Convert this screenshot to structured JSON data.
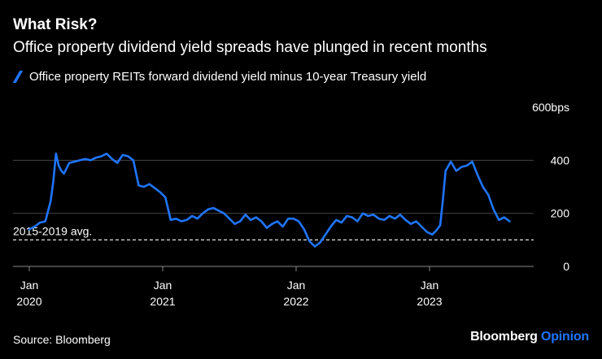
{
  "header": {
    "title": "What Risk?",
    "subtitle": "Office property dividend yield spreads have plunged in recent months"
  },
  "footer": {
    "source": "Source: Bloomberg",
    "brand_primary": "Bloomberg",
    "brand_secondary": "Opinion"
  },
  "colors": {
    "background": "#000000",
    "series": "#1f75fe",
    "text": "#ffffff",
    "grid": "#444444"
  },
  "chart_data": {
    "type": "line",
    "title": "What Risk?",
    "subtitle": "Office property dividend yield spreads have plunged in recent months",
    "xlabel": "",
    "ylabel": "",
    "ylim": [
      0,
      600
    ],
    "y_ticks": [
      {
        "value": 0,
        "label": "0"
      },
      {
        "value": 200,
        "label": "200"
      },
      {
        "value": 400,
        "label": "400"
      },
      {
        "value": 600,
        "label": "600bps"
      }
    ],
    "x_ticks": [
      {
        "value": 2020.0,
        "label_month": "Jan",
        "label_year": "2020"
      },
      {
        "value": 2021.0,
        "label_month": "Jan",
        "label_year": "2021"
      },
      {
        "value": 2022.0,
        "label_month": "Jan",
        "label_year": "2022"
      },
      {
        "value": 2023.0,
        "label_month": "Jan",
        "label_year": "2023"
      }
    ],
    "xlim": [
      2019.92,
      2023.78
    ],
    "grid": true,
    "legend_position": "top-left",
    "reference_line": {
      "value": 100,
      "label": "2015-2019 avg."
    },
    "series": [
      {
        "name": "Office property REITs forward dividend yield minus 10-year Treasury yield",
        "x": [
          2020.0,
          2020.04,
          2020.08,
          2020.12,
          2020.16,
          2020.18,
          2020.2,
          2020.22,
          2020.24,
          2020.26,
          2020.3,
          2020.34,
          2020.38,
          2020.42,
          2020.46,
          2020.5,
          2020.54,
          2020.58,
          2020.62,
          2020.66,
          2020.7,
          2020.74,
          2020.78,
          2020.82,
          2020.86,
          2020.9,
          2020.94,
          2020.98,
          2021.02,
          2021.06,
          2021.1,
          2021.14,
          2021.18,
          2021.22,
          2021.26,
          2021.3,
          2021.34,
          2021.38,
          2021.42,
          2021.46,
          2021.5,
          2021.54,
          2021.58,
          2021.62,
          2021.66,
          2021.7,
          2021.74,
          2021.78,
          2021.82,
          2021.86,
          2021.9,
          2021.94,
          2021.98,
          2022.02,
          2022.06,
          2022.1,
          2022.14,
          2022.18,
          2022.22,
          2022.26,
          2022.3,
          2022.34,
          2022.38,
          2022.42,
          2022.46,
          2022.5,
          2022.54,
          2022.58,
          2022.62,
          2022.66,
          2022.7,
          2022.74,
          2022.78,
          2022.82,
          2022.86,
          2022.9,
          2022.94,
          2022.98,
          2023.02,
          2023.05,
          2023.08,
          2023.1,
          2023.12,
          2023.16,
          2023.2,
          2023.24,
          2023.28,
          2023.32,
          2023.36,
          2023.4,
          2023.44,
          2023.48,
          2023.52,
          2023.56,
          2023.6
        ],
        "values": [
          140,
          150,
          165,
          170,
          245,
          320,
          425,
          380,
          360,
          350,
          390,
          395,
          400,
          405,
          400,
          410,
          415,
          425,
          405,
          390,
          420,
          415,
          400,
          305,
          300,
          310,
          295,
          280,
          260,
          175,
          180,
          170,
          175,
          190,
          180,
          200,
          215,
          220,
          210,
          200,
          180,
          160,
          170,
          195,
          175,
          185,
          170,
          145,
          160,
          170,
          150,
          180,
          180,
          170,
          140,
          95,
          75,
          90,
          120,
          150,
          175,
          165,
          190,
          185,
          170,
          200,
          190,
          195,
          180,
          175,
          190,
          180,
          195,
          175,
          160,
          170,
          150,
          130,
          120,
          135,
          155,
          250,
          360,
          395,
          360,
          375,
          380,
          395,
          345,
          300,
          270,
          215,
          175,
          185,
          170
        ]
      }
    ]
  }
}
